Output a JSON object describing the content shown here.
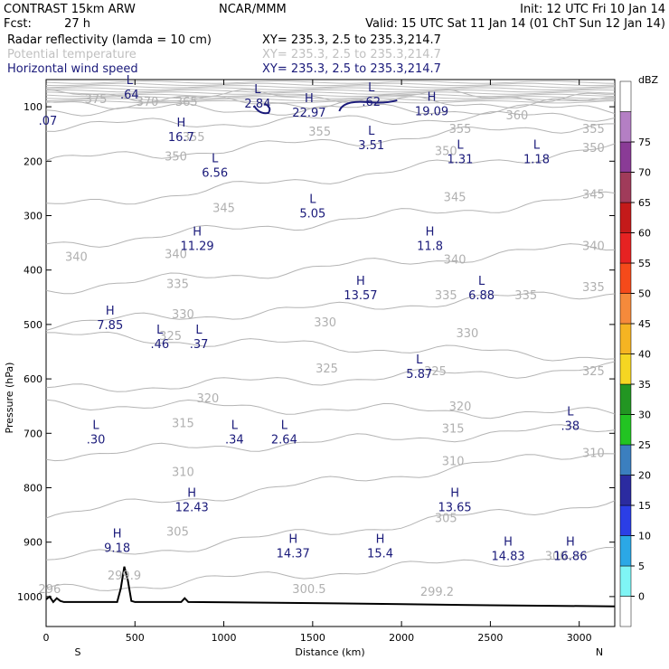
{
  "header": {
    "model": "CONTRAST 15km ARW",
    "org": "NCAR/MMM",
    "init": "Init: 12 UTC Fri 10 Jan 14",
    "fcst_label": "Fcst:",
    "fcst_value": "27 h",
    "valid": "Valid: 15 UTC Sat 11 Jan 14 (01 ChT Sun 12 Jan 14)"
  },
  "legend_rows": [
    {
      "name": "Radar reflectivity (lamda = 10 cm)",
      "xy": "XY= 235.3,  2.5 to 235.3,214.7",
      "color": "#000000"
    },
    {
      "name": "Potential temperature",
      "xy": "XY= 235.3,  2.5 to 235.3,214.7",
      "color": "#c0c0c0"
    },
    {
      "name": "Horizontal wind speed",
      "xy": "XY= 235.3,  2.5 to 235.3,214.7",
      "color": "#1a1a7a"
    }
  ],
  "chart_data": {
    "type": "cross-section contour",
    "xlabel": "Distance (km)",
    "ylabel": "Pressure (hPa)",
    "x_ticks": [
      0,
      500,
      1000,
      1500,
      2000,
      2500,
      3000
    ],
    "xlim": [
      0,
      3200
    ],
    "y_ticks": [
      100,
      200,
      300,
      400,
      500,
      600,
      700,
      800,
      900,
      1000
    ],
    "ylim": [
      1055,
      50
    ],
    "x_end_labels": {
      "left": "S",
      "right": "N"
    },
    "colorbar": {
      "unit": "dBZ",
      "levels": [
        0,
        5,
        10,
        15,
        20,
        25,
        30,
        35,
        40,
        45,
        50,
        55,
        60,
        65,
        70,
        75
      ],
      "colors": [
        "#ffffff",
        "#7ff5f5",
        "#2ba8e6",
        "#2b3ee6",
        "#2b2ba0",
        "#3b7fbf",
        "#22c422",
        "#229622",
        "#f5d622",
        "#f5b422",
        "#f58a3b",
        "#f54a1a",
        "#e62222",
        "#c41a1a",
        "#a03b5a",
        "#8a3b96",
        "#b47fc4",
        "#ffffff"
      ]
    },
    "theta_isentropes_K": [
      300,
      305,
      310,
      315,
      320,
      325,
      330,
      335,
      340,
      345,
      350,
      355,
      360,
      365,
      370,
      375
    ],
    "theta_labels": [
      {
        "value": "375",
        "x": 280,
        "p": 85
      },
      {
        "value": "370",
        "x": 570,
        "p": 90
      },
      {
        "value": "365",
        "x": 790,
        "p": 90
      },
      {
        "value": "360",
        "x": 2650,
        "p": 115
      },
      {
        "value": "355",
        "x": 830,
        "p": 155
      },
      {
        "value": "355",
        "x": 1540,
        "p": 145
      },
      {
        "value": "355",
        "x": 2330,
        "p": 140
      },
      {
        "value": "355",
        "x": 3080,
        "p": 140
      },
      {
        "value": "350",
        "x": 730,
        "p": 190
      },
      {
        "value": "350",
        "x": 2250,
        "p": 180
      },
      {
        "value": "350",
        "x": 3080,
        "p": 175
      },
      {
        "value": "345",
        "x": 1000,
        "p": 285
      },
      {
        "value": "345",
        "x": 2300,
        "p": 265
      },
      {
        "value": "345",
        "x": 3080,
        "p": 260
      },
      {
        "value": "340",
        "x": 170,
        "p": 375
      },
      {
        "value": "340",
        "x": 730,
        "p": 370
      },
      {
        "value": "340",
        "x": 2300,
        "p": 380
      },
      {
        "value": "340",
        "x": 3080,
        "p": 355
      },
      {
        "value": "335",
        "x": 740,
        "p": 425
      },
      {
        "value": "335",
        "x": 2250,
        "p": 445
      },
      {
        "value": "335",
        "x": 2700,
        "p": 445
      },
      {
        "value": "335",
        "x": 3080,
        "p": 430
      },
      {
        "value": "330",
        "x": 770,
        "p": 480
      },
      {
        "value": "330",
        "x": 1570,
        "p": 495
      },
      {
        "value": "330",
        "x": 2370,
        "p": 515
      },
      {
        "value": "325",
        "x": 700,
        "p": 520
      },
      {
        "value": "325",
        "x": 1580,
        "p": 580
      },
      {
        "value": "325",
        "x": 2190,
        "p": 585
      },
      {
        "value": "325",
        "x": 3080,
        "p": 585
      },
      {
        "value": "320",
        "x": 910,
        "p": 635
      },
      {
        "value": "320",
        "x": 2330,
        "p": 650
      },
      {
        "value": "315",
        "x": 770,
        "p": 680
      },
      {
        "value": "315",
        "x": 2290,
        "p": 690
      },
      {
        "value": "310",
        "x": 770,
        "p": 770
      },
      {
        "value": "310",
        "x": 2290,
        "p": 750
      },
      {
        "value": "310",
        "x": 3080,
        "p": 735
      },
      {
        "value": "305",
        "x": 740,
        "p": 880
      },
      {
        "value": "305",
        "x": 2250,
        "p": 855
      },
      {
        "value": "300",
        "x": 2870,
        "p": 925
      },
      {
        "value": "300.5",
        "x": 1480,
        "p": 985
      },
      {
        "value": "299.9",
        "x": 440,
        "p": 960
      },
      {
        "value": "299.2",
        "x": 2200,
        "p": 990
      },
      {
        "value": "296",
        "x": 20,
        "p": 985
      }
    ],
    "wind_extrema": [
      {
        "kind": "L",
        "value": ".64",
        "x": 470,
        "p": 72
      },
      {
        "kind": "L",
        "value": "2.84",
        "x": 1190,
        "p": 88
      },
      {
        "kind": "H",
        "value": "22.97",
        "x": 1480,
        "p": 105
      },
      {
        "kind": "L",
        "value": ".62",
        "x": 1830,
        "p": 85
      },
      {
        "kind": "H",
        "value": "19.09",
        "x": 2170,
        "p": 102
      },
      {
        "kind": "",
        "value": ".07",
        "x": 10,
        "p": 120
      },
      {
        "kind": "H",
        "value": "16.7",
        "x": 760,
        "p": 150
      },
      {
        "kind": "L",
        "value": "3.51",
        "x": 1830,
        "p": 165
      },
      {
        "kind": "L",
        "value": "1.31",
        "x": 2330,
        "p": 190
      },
      {
        "kind": "L",
        "value": "1.18",
        "x": 2760,
        "p": 190
      },
      {
        "kind": "L",
        "value": "6.56",
        "x": 950,
        "p": 215
      },
      {
        "kind": "L",
        "value": "5.05",
        "x": 1500,
        "p": 290
      },
      {
        "kind": "H",
        "value": "11.29",
        "x": 850,
        "p": 350
      },
      {
        "kind": "H",
        "value": "11.8",
        "x": 2160,
        "p": 350
      },
      {
        "kind": "H",
        "value": "13.57",
        "x": 1770,
        "p": 440
      },
      {
        "kind": "L",
        "value": "6.88",
        "x": 2450,
        "p": 440
      },
      {
        "kind": "H",
        "value": "7.85",
        "x": 360,
        "p": 495
      },
      {
        "kind": "L",
        "value": ".46",
        "x": 640,
        "p": 530
      },
      {
        "kind": "L",
        "value": ".37",
        "x": 860,
        "p": 530
      },
      {
        "kind": "L",
        "value": "5.87",
        "x": 2100,
        "p": 585
      },
      {
        "kind": "L",
        "value": ".38",
        "x": 2950,
        "p": 680
      },
      {
        "kind": "L",
        "value": ".30",
        "x": 280,
        "p": 705
      },
      {
        "kind": "L",
        "value": ".34",
        "x": 1060,
        "p": 705
      },
      {
        "kind": "L",
        "value": "2.64",
        "x": 1340,
        "p": 705
      },
      {
        "kind": "H",
        "value": "12.43",
        "x": 820,
        "p": 830
      },
      {
        "kind": "H",
        "value": "13.65",
        "x": 2300,
        "p": 830
      },
      {
        "kind": "H",
        "value": "9.18",
        "x": 400,
        "p": 905
      },
      {
        "kind": "H",
        "value": "14.37",
        "x": 1390,
        "p": 915
      },
      {
        "kind": "H",
        "value": "15.4",
        "x": 1880,
        "p": 915
      },
      {
        "kind": "H",
        "value": "14.83",
        "x": 2600,
        "p": 920
      },
      {
        "kind": "H",
        "value": "16.86",
        "x": 2950,
        "p": 920
      }
    ],
    "terrain_surface_pressure": [
      [
        0,
        1005
      ],
      [
        20,
        1000
      ],
      [
        40,
        1010
      ],
      [
        60,
        1003
      ],
      [
        80,
        1008
      ],
      [
        100,
        1010
      ],
      [
        400,
        1010
      ],
      [
        420,
        985
      ],
      [
        440,
        945
      ],
      [
        460,
        970
      ],
      [
        480,
        1008
      ],
      [
        500,
        1010
      ],
      [
        760,
        1010
      ],
      [
        780,
        1003
      ],
      [
        800,
        1010
      ],
      [
        1500,
        1012
      ],
      [
        2000,
        1014
      ],
      [
        2500,
        1016
      ],
      [
        3200,
        1018
      ]
    ]
  }
}
